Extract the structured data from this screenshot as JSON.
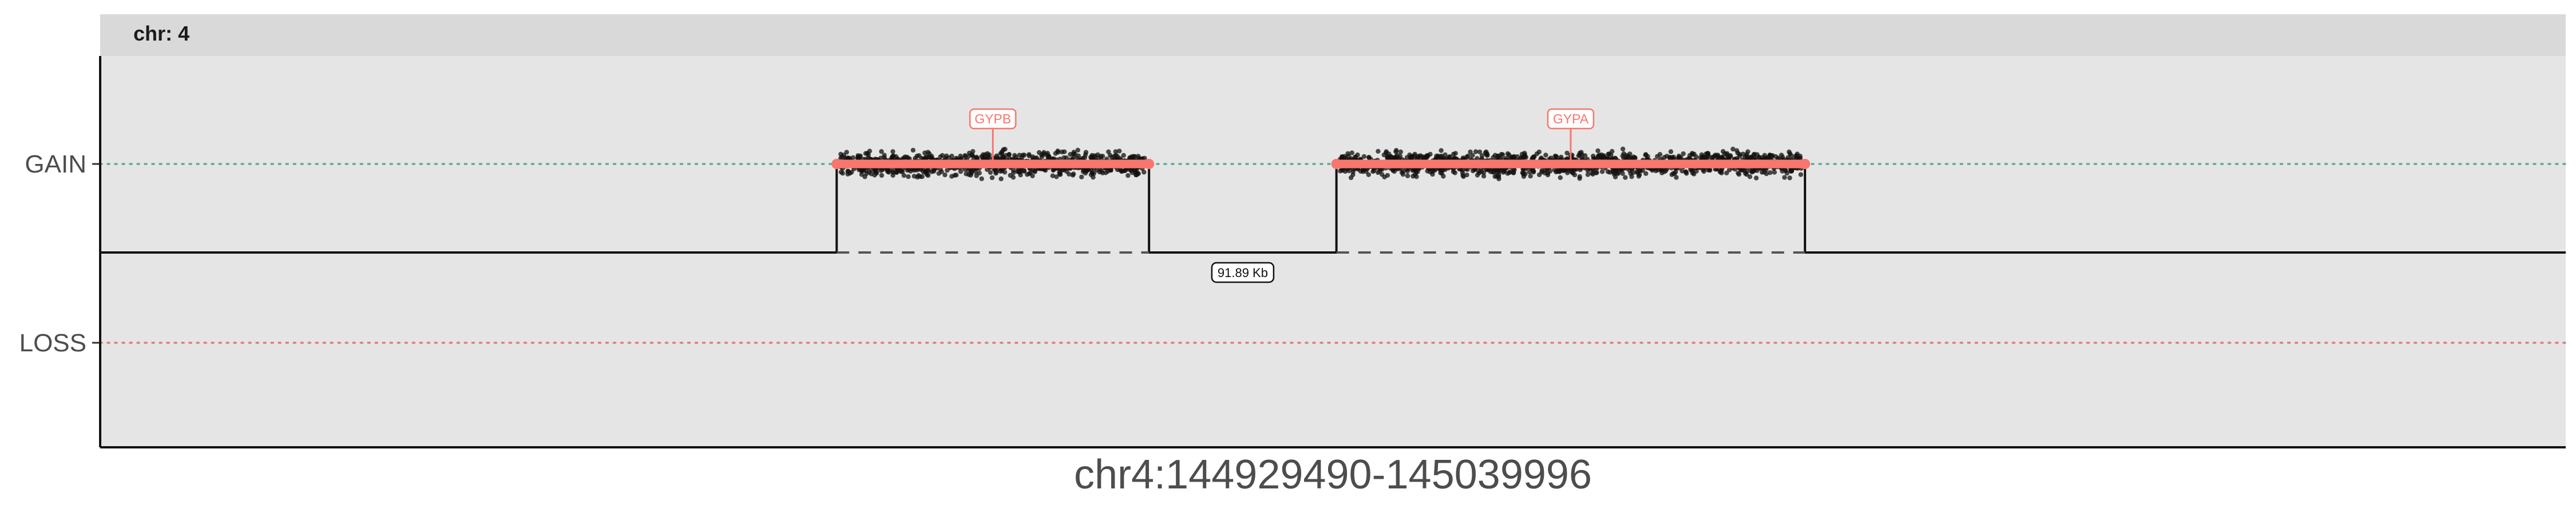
{
  "chart_data": {
    "type": "scatter",
    "facet_label": "chr: 4",
    "xlabel": "chr4:144929490-145039996",
    "x_range": [
      144929490,
      145039996
    ],
    "y_categories": [
      "GAIN",
      "LOSS"
    ],
    "reference_lines": [
      {
        "category": "GAIN",
        "color": "#5fa89a",
        "style": "dotted"
      },
      {
        "category": "LOSS",
        "color": "#e07b7b",
        "style": "dotted"
      }
    ],
    "segments": [
      {
        "start": 144962500,
        "end": 144976500,
        "state": "GAIN",
        "gene": "GYPB"
      },
      {
        "start": 144984900,
        "end": 145005900,
        "state": "GAIN",
        "gene": "GYPA"
      }
    ],
    "gap_annotation": {
      "label": "91.89 Kb",
      "x": 144980700
    },
    "point_color": "#111111",
    "segment_color": "#f8766d",
    "grid": false,
    "panel_background": "#e5e5e5",
    "strip_background": "#d9d9d9"
  }
}
